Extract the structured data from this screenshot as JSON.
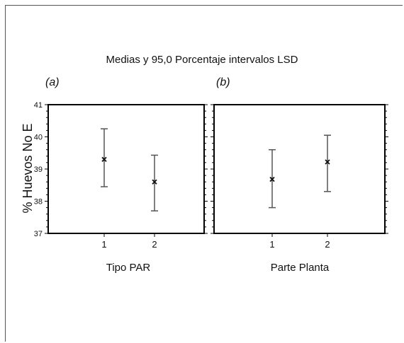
{
  "chart_data": {
    "title": "Medias y 95,0 Porcentaje intervalos LSD",
    "ylabel": "% Huevos No E",
    "ylim": [
      37,
      41
    ],
    "yticks": [
      "37",
      "38",
      "39",
      "40",
      "41"
    ],
    "marker": "x",
    "panels": [
      {
        "label": "(a)",
        "type": "interval",
        "xlabel": "Tipo PAR",
        "categories": [
          "1",
          "2"
        ],
        "means": [
          39.3,
          38.6
        ],
        "lower": [
          38.45,
          37.7
        ],
        "upper": [
          40.25,
          39.43
        ]
      },
      {
        "label": "(b)",
        "type": "interval",
        "xlabel": "Parte Planta",
        "categories": [
          "1",
          "2"
        ],
        "means": [
          38.68,
          39.22
        ],
        "lower": [
          37.8,
          38.3
        ],
        "upper": [
          39.6,
          40.05
        ]
      }
    ],
    "colors": {
      "interval": "#555555",
      "marker": "#111111",
      "axis": "#000000"
    }
  }
}
